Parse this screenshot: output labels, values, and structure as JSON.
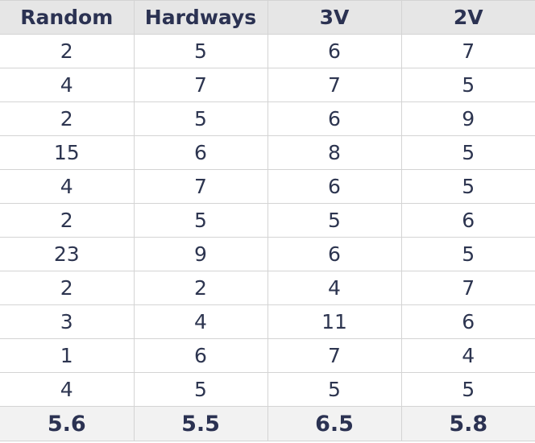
{
  "table": {
    "headers": [
      "Random",
      "Hardways",
      "3V",
      "2V"
    ],
    "rows": [
      [
        "2",
        "5",
        "6",
        "7"
      ],
      [
        "4",
        "7",
        "7",
        "5"
      ],
      [
        "2",
        "5",
        "6",
        "9"
      ],
      [
        "15",
        "6",
        "8",
        "5"
      ],
      [
        "4",
        "7",
        "6",
        "5"
      ],
      [
        "2",
        "5",
        "5",
        "6"
      ],
      [
        "23",
        "9",
        "6",
        "5"
      ],
      [
        "2",
        "2",
        "4",
        "7"
      ],
      [
        "3",
        "4",
        "11",
        "6"
      ],
      [
        "1",
        "6",
        "7",
        "4"
      ],
      [
        "4",
        "5",
        "5",
        "5"
      ]
    ],
    "footer": [
      "5.6",
      "5.5",
      "6.5",
      "5.8"
    ]
  }
}
